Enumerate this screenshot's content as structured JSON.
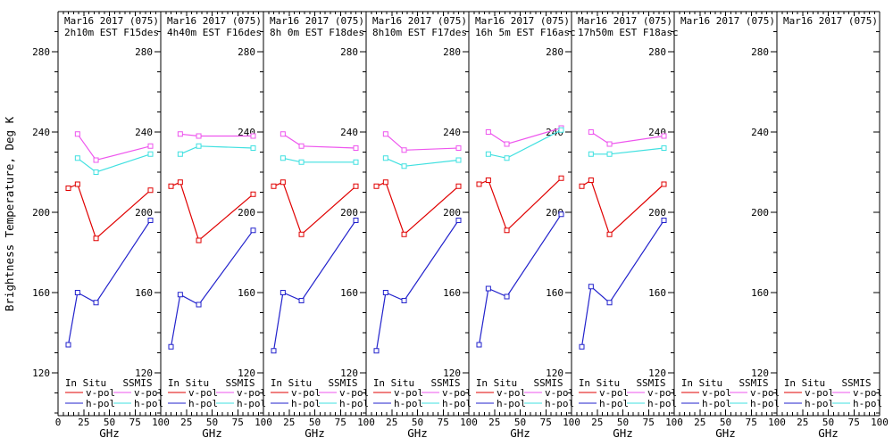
{
  "chart_data": {
    "type": "line",
    "ylabel": "Brightness Temperature, Deg K",
    "xlabel": "GHz",
    "x_ticks": [
      0,
      25,
      50,
      75,
      100
    ],
    "y_ticks": [
      280,
      240,
      200,
      160,
      120
    ],
    "xlim": [
      0,
      100
    ],
    "ylim_labeled": [
      120,
      280
    ],
    "x_minor_step_ghz": 5,
    "y_minor_step_k": 10,
    "grid": false,
    "legend": {
      "col1_header": "In Situ",
      "col2_header": "SSMIS",
      "vpol_label": "v-pol",
      "hpol_label": "h-pol"
    },
    "colors": {
      "insitu_v": "#e00000",
      "insitu_h": "#2222cc",
      "ssmis_v": "#ee55ee",
      "ssmis_h": "#3fe0e0",
      "axis": "#000000"
    },
    "insitu_x_ghz": [
      10,
      19,
      37,
      90
    ],
    "ssmis_x_ghz": [
      19,
      37,
      90
    ],
    "panels": [
      {
        "title1": "Mar16 2017 (075)",
        "title2": "2h10m EST F15des",
        "insitu_v": [
          212,
          214,
          187,
          211
        ],
        "insitu_h": [
          134,
          160,
          155,
          196
        ],
        "ssmis_v": [
          239,
          226,
          233
        ],
        "ssmis_h": [
          227,
          220,
          229
        ]
      },
      {
        "title1": "Mar16 2017 (075)",
        "title2": "4h40m EST F16des",
        "insitu_v": [
          213,
          215,
          186,
          209
        ],
        "insitu_h": [
          133,
          159,
          154,
          191
        ],
        "ssmis_v": [
          239,
          238,
          238
        ],
        "ssmis_h": [
          229,
          233,
          232
        ]
      },
      {
        "title1": "Mar16 2017 (075)",
        "title2": "8h 0m EST F18des",
        "insitu_v": [
          213,
          215,
          189,
          213
        ],
        "insitu_h": [
          131,
          160,
          156,
          196
        ],
        "ssmis_v": [
          239,
          233,
          232
        ],
        "ssmis_h": [
          227,
          225,
          225
        ]
      },
      {
        "title1": "Mar16 2017 (075)",
        "title2": "8h10m EST F17des",
        "insitu_v": [
          213,
          215,
          189,
          213
        ],
        "insitu_h": [
          131,
          160,
          156,
          196
        ],
        "ssmis_v": [
          239,
          231,
          232
        ],
        "ssmis_h": [
          227,
          223,
          226
        ]
      },
      {
        "title1": "Mar16 2017 (075)",
        "title2": "16h 5m EST F16asc",
        "insitu_v": [
          214,
          216,
          191,
          217
        ],
        "insitu_h": [
          134,
          162,
          158,
          199
        ],
        "ssmis_v": [
          240,
          234,
          242
        ],
        "ssmis_h": [
          229,
          227,
          241
        ]
      },
      {
        "title1": "Mar16 2017 (075)",
        "title2": "17h50m EST F18asc",
        "insitu_v": [
          213,
          216,
          189,
          214
        ],
        "insitu_h": [
          133,
          163,
          155,
          196
        ],
        "ssmis_v": [
          240,
          234,
          238
        ],
        "ssmis_h": [
          229,
          229,
          232
        ]
      },
      {
        "title1": "Mar16 2017 (075)",
        "title2": "",
        "insitu_v": [],
        "insitu_h": [],
        "ssmis_v": [],
        "ssmis_h": []
      },
      {
        "title1": "Mar16 2017 (075)",
        "title2": "",
        "insitu_v": [],
        "insitu_h": [],
        "ssmis_v": [],
        "ssmis_h": []
      }
    ]
  }
}
